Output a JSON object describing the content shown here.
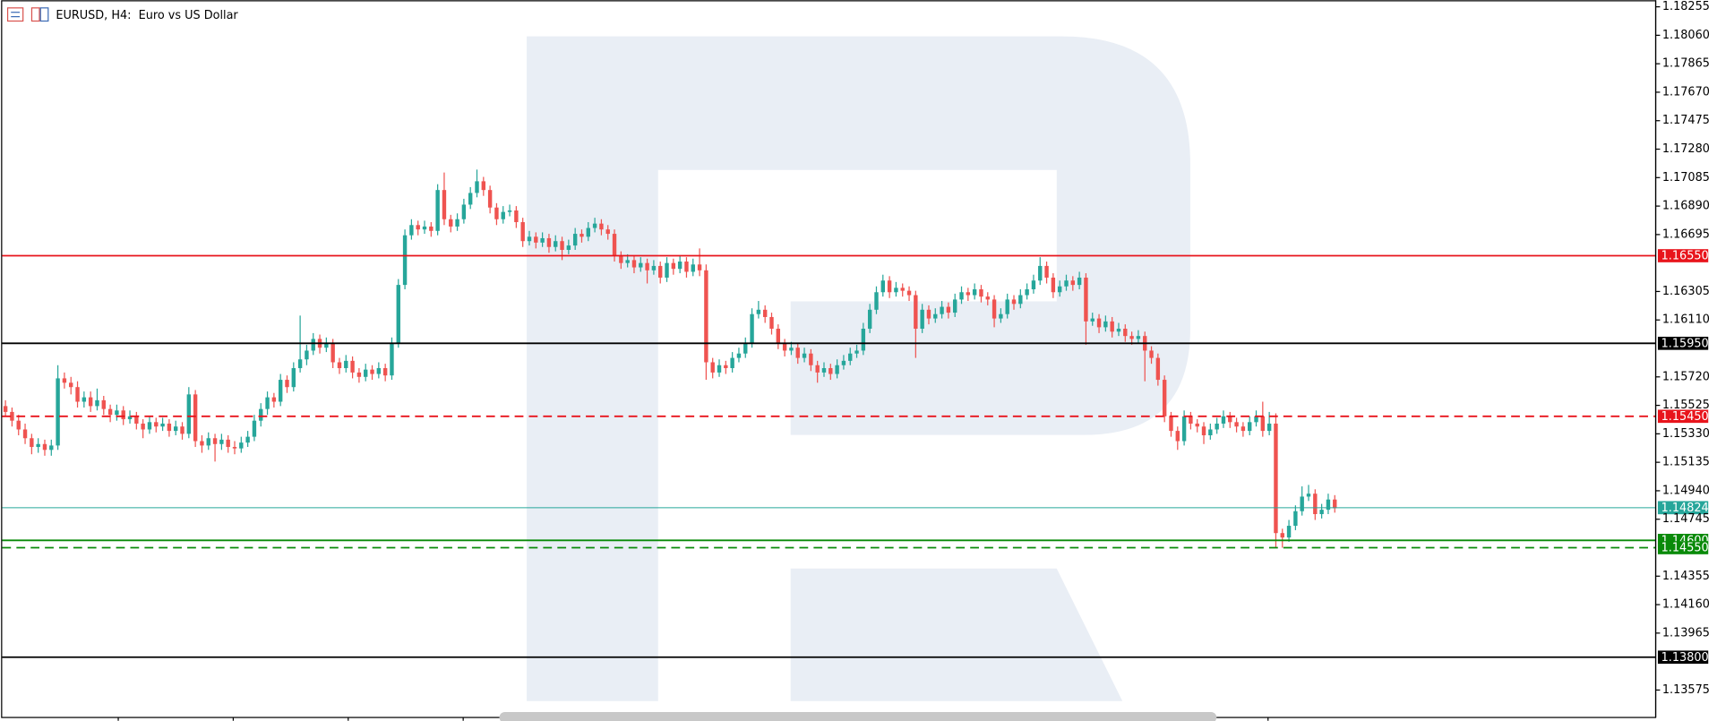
{
  "chart_data": {
    "type": "candlestick",
    "title": "EURUSD, H4:  Euro vs US Dollar",
    "up_color": "#26a69a",
    "down_color": "#ef5350",
    "ylim": [
      1.13387,
      1.183
    ],
    "yticks": [
      1.18255,
      {
        "value": 1.1806,
        "label": "1.18060"
      },
      1.17865,
      {
        "value": 1.1767,
        "label": "1.17670"
      },
      1.17475,
      {
        "value": 1.1728,
        "label": "1.17280"
      },
      1.17085,
      {
        "value": 1.1689,
        "label": "1.16890"
      },
      1.16695,
      1.16305,
      {
        "value": 1.1611,
        "label": "1.16110"
      },
      {
        "value": 1.1572,
        "label": "1.15720"
      },
      1.15525,
      {
        "value": 1.1533,
        "label": "1.15330"
      },
      1.15135,
      {
        "value": 1.1494,
        "label": "1.14940"
      },
      1.14745,
      1.14355,
      {
        "value": 1.1416,
        "label": "1.14160"
      },
      1.13965,
      1.13575
    ],
    "levels": [
      {
        "value": 1.1655,
        "label": "1.16550",
        "color": "#e8141c",
        "style": "solid"
      },
      {
        "value": 1.1595,
        "label": "1.15950",
        "color": "#000000",
        "style": "solid"
      },
      {
        "value": 1.1545,
        "label": "1.15450",
        "color": "#e8141c",
        "style": "dashed"
      },
      {
        "value": 1.14824,
        "label": "1.14824",
        "color": "#26a69a",
        "style": "thin"
      },
      {
        "value": 1.146,
        "label": "1.14600",
        "color": "#098a09",
        "style": "solid"
      },
      {
        "value": 1.1455,
        "label": "1.14550",
        "color": "#098a09",
        "style": "dashed"
      },
      {
        "value": 1.138,
        "label": "1.13800",
        "color": "#000000",
        "style": "solid"
      }
    ],
    "open": [
      1.1552,
      1.1548,
      1.1542,
      1.1536,
      1.153,
      1.1524,
      1.1526,
      1.1522,
      1.1525,
      1.1571,
      1.1568,
      1.1565,
      1.1555,
      1.1558,
      1.1552,
      1.1556,
      1.155,
      1.1546,
      1.1549,
      1.1543,
      1.1545,
      1.154,
      1.1536,
      1.1541,
      1.1538,
      1.154,
      1.1535,
      1.1538,
      1.1533,
      1.156,
      1.1528,
      1.1525,
      1.153,
      1.1526,
      1.1529,
      1.1524,
      1.1523,
      1.1527,
      1.1531,
      1.1542,
      1.155,
      1.1558,
      1.1555,
      1.157,
      1.1565,
      1.1578,
      1.1584,
      1.159,
      1.1598,
      1.1592,
      1.1595,
      1.1582,
      1.1578,
      1.1583,
      1.1575,
      1.1572,
      1.1577,
      1.1574,
      1.1578,
      1.1573,
      1.1595,
      1.1635,
      1.1669,
      1.1676,
      1.1673,
      1.1675,
      1.1672,
      1.17,
      1.168,
      1.1675,
      1.168,
      1.169,
      1.1698,
      1.1706,
      1.17,
      1.1688,
      1.168,
      1.1685,
      1.1686,
      1.1678,
      1.1665,
      1.1668,
      1.1664,
      1.1667,
      1.1661,
      1.1665,
      1.1659,
      1.1662,
      1.167,
      1.1668,
      1.1674,
      1.1677,
      1.1673,
      1.167,
      1.1655,
      1.165,
      1.1652,
      1.1647,
      1.165,
      1.1645,
      1.1648,
      1.164,
      1.165,
      1.1646,
      1.1651,
      1.1644,
      1.1649,
      1.1645,
      1.1582,
      1.1575,
      1.158,
      1.1578,
      1.1585,
      1.1588,
      1.1595,
      1.1615,
      1.1618,
      1.1613,
      1.1605,
      1.1595,
      1.159,
      1.1592,
      1.1585,
      1.1588,
      1.158,
      1.1575,
      1.1578,
      1.1574,
      1.158,
      1.1583,
      1.1588,
      1.159,
      1.1605,
      1.1618,
      1.163,
      1.1638,
      1.163,
      1.1633,
      1.1631,
      1.1628,
      1.1605,
      1.1618,
      1.1612,
      1.1615,
      1.162,
      1.1616,
      1.1625,
      1.163,
      1.1628,
      1.1632,
      1.1627,
      1.1625,
      1.1612,
      1.1615,
      1.1625,
      1.1622,
      1.1628,
      1.1632,
      1.1638,
      1.1648,
      1.164,
      1.163,
      1.1634,
      1.1638,
      1.1635,
      1.164,
      1.161,
      1.1612,
      1.1606,
      1.161,
      1.1603,
      1.1605,
      1.16,
      1.1598,
      1.16,
      1.159,
      1.1585,
      1.157,
      1.1545,
      1.1535,
      1.1528,
      1.1545,
      1.154,
      1.1538,
      1.1532,
      1.1536,
      1.154,
      1.1545,
      1.1541,
      1.1538,
      1.1535,
      1.1541,
      1.1545,
      1.1535,
      1.154,
      1.1465,
      1.1462,
      1.147,
      1.148,
      1.149,
      1.1492,
      1.1478,
      1.1481,
      1.1488
    ],
    "high": [
      1.1556,
      1.1551,
      1.1546,
      1.154,
      1.1533,
      1.153,
      1.1529,
      1.1529,
      1.158,
      1.1575,
      1.1572,
      1.1569,
      1.1562,
      1.1562,
      1.1564,
      1.1559,
      1.1553,
      1.1553,
      1.1552,
      1.1549,
      1.1548,
      1.1543,
      1.1545,
      1.1544,
      1.1544,
      1.1543,
      1.1542,
      1.1541,
      1.1565,
      1.1563,
      1.1532,
      1.1534,
      1.1533,
      1.1533,
      1.1532,
      1.1528,
      1.1531,
      1.1535,
      1.1546,
      1.1554,
      1.1562,
      1.1561,
      1.1574,
      1.1573,
      1.1582,
      1.1614,
      1.1594,
      1.1602,
      1.1601,
      1.1599,
      1.1598,
      1.1585,
      1.1587,
      1.1586,
      1.1578,
      1.1581,
      1.158,
      1.1582,
      1.1581,
      1.1599,
      1.1639,
      1.1673,
      1.168,
      1.1679,
      1.1679,
      1.1678,
      1.1704,
      1.1712,
      1.1683,
      1.1684,
      1.1694,
      1.1702,
      1.1714,
      1.1709,
      1.1703,
      1.1691,
      1.1689,
      1.169,
      1.1689,
      1.1681,
      1.1672,
      1.1671,
      1.1671,
      1.167,
      1.1669,
      1.1668,
      1.1666,
      1.1674,
      1.1673,
      1.1678,
      1.1681,
      1.168,
      1.1676,
      1.1673,
      1.1658,
      1.1656,
      1.1655,
      1.1654,
      1.1653,
      1.1652,
      1.1651,
      1.1654,
      1.1653,
      1.1655,
      1.1654,
      1.1653,
      1.166,
      1.1649,
      1.1585,
      1.1584,
      1.1583,
      1.1589,
      1.1592,
      1.1599,
      1.1619,
      1.1624,
      1.1621,
      1.1616,
      1.1608,
      1.1598,
      1.1596,
      1.1595,
      1.1592,
      1.1591,
      1.1583,
      1.1582,
      1.1581,
      1.1584,
      1.1587,
      1.1592,
      1.1594,
      1.1609,
      1.1622,
      1.1634,
      1.1642,
      1.1641,
      1.1637,
      1.1636,
      1.1634,
      1.1631,
      1.1622,
      1.1621,
      1.1619,
      1.1624,
      1.1623,
      1.1629,
      1.1634,
      1.1633,
      1.1636,
      1.1635,
      1.163,
      1.1628,
      1.1619,
      1.1629,
      1.1628,
      1.1632,
      1.1636,
      1.1642,
      1.1654,
      1.1651,
      1.1643,
      1.1638,
      1.1642,
      1.1641,
      1.1644,
      1.1643,
      1.1616,
      1.1615,
      1.1614,
      1.1613,
      1.1609,
      1.1608,
      1.1603,
      1.1604,
      1.1603,
      1.1593,
      1.1588,
      1.1573,
      1.1548,
      1.1538,
      1.1549,
      1.1548,
      1.1543,
      1.1541,
      1.154,
      1.1544,
      1.1549,
      1.1548,
      1.1544,
      1.1541,
      1.1545,
      1.1549,
      1.1555,
      1.1548,
      1.1547,
      1.1468,
      1.1474,
      1.1484,
      1.1497,
      1.1498,
      1.1495,
      1.1485,
      1.1492,
      1.1491
    ],
    "low": [
      1.1545,
      1.1538,
      1.1532,
      1.1526,
      1.1519,
      1.152,
      1.1518,
      1.1518,
      1.1522,
      1.1564,
      1.156,
      1.1551,
      1.1551,
      1.1548,
      1.1549,
      1.1546,
      1.1541,
      1.1542,
      1.1539,
      1.154,
      1.1536,
      1.153,
      1.1533,
      1.1534,
      1.1535,
      1.1531,
      1.1532,
      1.1529,
      1.153,
      1.1524,
      1.152,
      1.1522,
      1.1514,
      1.1522,
      1.152,
      1.1519,
      1.152,
      1.1524,
      1.1528,
      1.1538,
      1.1546,
      1.1551,
      1.1552,
      1.1561,
      1.1562,
      1.1575,
      1.158,
      1.1587,
      1.1588,
      1.1589,
      1.1578,
      1.1574,
      1.1575,
      1.1571,
      1.1568,
      1.1569,
      1.157,
      1.1571,
      1.1569,
      1.157,
      1.1592,
      1.1632,
      1.1666,
      1.1669,
      1.167,
      1.1668,
      1.1669,
      1.1676,
      1.1671,
      1.1672,
      1.1677,
      1.1687,
      1.1695,
      1.1696,
      1.1684,
      1.1676,
      1.1677,
      1.1682,
      1.1674,
      1.1661,
      1.1662,
      1.166,
      1.1661,
      1.1657,
      1.1658,
      1.1652,
      1.1656,
      1.1659,
      1.1664,
      1.1665,
      1.1671,
      1.1669,
      1.1666,
      1.1651,
      1.1646,
      1.1647,
      1.1643,
      1.1644,
      1.1636,
      1.1642,
      1.1636,
      1.1637,
      1.1642,
      1.1643,
      1.164,
      1.1641,
      1.1641,
      1.157,
      1.1571,
      1.1572,
      1.1574,
      1.1575,
      1.1582,
      1.1585,
      1.1592,
      1.1612,
      1.1609,
      1.1601,
      1.1591,
      1.1586,
      1.1587,
      1.1581,
      1.1582,
      1.1576,
      1.1568,
      1.1572,
      1.157,
      1.1571,
      1.1577,
      1.158,
      1.1585,
      1.1587,
      1.1602,
      1.1615,
      1.1627,
      1.1626,
      1.1627,
      1.1627,
      1.1624,
      1.1585,
      1.1602,
      1.1608,
      1.1609,
      1.1612,
      1.1612,
      1.1613,
      1.1622,
      1.1624,
      1.1625,
      1.1623,
      1.1621,
      1.1606,
      1.1609,
      1.1612,
      1.1618,
      1.1619,
      1.1625,
      1.1629,
      1.1635,
      1.1636,
      1.1626,
      1.1627,
      1.1631,
      1.1631,
      1.1632,
      1.1594,
      1.1607,
      1.1602,
      1.1603,
      1.1599,
      1.16,
      1.1596,
      1.1594,
      1.1595,
      1.1569,
      1.1581,
      1.1566,
      1.1541,
      1.1531,
      1.1522,
      1.1525,
      1.1536,
      1.1534,
      1.1526,
      1.1529,
      1.1533,
      1.1537,
      1.1537,
      1.1534,
      1.1531,
      1.1532,
      1.1538,
      1.1531,
      1.1532,
      1.1455,
      1.1455,
      1.1459,
      1.1467,
      1.1477,
      1.1487,
      1.1474,
      1.1475,
      1.1478,
      1.1479
    ],
    "close": [
      1.1548,
      1.1542,
      1.1536,
      1.153,
      1.1524,
      1.1526,
      1.1522,
      1.1525,
      1.1571,
      1.1568,
      1.1565,
      1.1555,
      1.1558,
      1.1552,
      1.1556,
      1.155,
      1.1546,
      1.1549,
      1.1543,
      1.1545,
      1.154,
      1.1536,
      1.1541,
      1.1538,
      1.154,
      1.1535,
      1.1538,
      1.1533,
      1.156,
      1.1528,
      1.1525,
      1.153,
      1.1526,
      1.1529,
      1.1524,
      1.1523,
      1.1527,
      1.1531,
      1.1542,
      1.155,
      1.1558,
      1.1555,
      1.157,
      1.1565,
      1.1578,
      1.1584,
      1.159,
      1.1598,
      1.1592,
      1.1595,
      1.1582,
      1.1578,
      1.1583,
      1.1575,
      1.1572,
      1.1577,
      1.1574,
      1.1578,
      1.1573,
      1.1595,
      1.1635,
      1.1669,
      1.1676,
      1.1673,
      1.1675,
      1.1672,
      1.17,
      1.168,
      1.1675,
      1.168,
      1.169,
      1.1698,
      1.1706,
      1.17,
      1.1688,
      1.168,
      1.1685,
      1.1686,
      1.1678,
      1.1665,
      1.1668,
      1.1664,
      1.1667,
      1.1661,
      1.1665,
      1.1659,
      1.1662,
      1.167,
      1.1668,
      1.1674,
      1.1677,
      1.1673,
      1.167,
      1.1655,
      1.165,
      1.1652,
      1.1647,
      1.165,
      1.1645,
      1.1648,
      1.164,
      1.165,
      1.1646,
      1.1651,
      1.1644,
      1.1649,
      1.1645,
      1.1582,
      1.1575,
      1.158,
      1.1578,
      1.1585,
      1.1588,
      1.1595,
      1.1615,
      1.1618,
      1.1613,
      1.1605,
      1.1595,
      1.159,
      1.1592,
      1.1585,
      1.1588,
      1.158,
      1.1575,
      1.1578,
      1.1574,
      1.158,
      1.1583,
      1.1588,
      1.159,
      1.1605,
      1.1618,
      1.163,
      1.1638,
      1.163,
      1.1633,
      1.1631,
      1.1628,
      1.1605,
      1.1618,
      1.1612,
      1.1615,
      1.162,
      1.1616,
      1.1625,
      1.163,
      1.1628,
      1.1632,
      1.1627,
      1.1625,
      1.1612,
      1.1615,
      1.1625,
      1.1622,
      1.1628,
      1.1632,
      1.1638,
      1.1648,
      1.164,
      1.163,
      1.1634,
      1.1638,
      1.1635,
      1.164,
      1.161,
      1.1612,
      1.1606,
      1.161,
      1.1603,
      1.1605,
      1.16,
      1.1598,
      1.16,
      1.159,
      1.1585,
      1.157,
      1.1545,
      1.1535,
      1.1528,
      1.1545,
      1.154,
      1.1538,
      1.1532,
      1.1536,
      1.154,
      1.1545,
      1.1541,
      1.1538,
      1.1535,
      1.1541,
      1.1545,
      1.1535,
      1.154,
      1.1465,
      1.1462,
      1.147,
      1.148,
      1.149,
      1.1492,
      1.1478,
      1.1481,
      1.1488,
      1.1482
    ]
  }
}
